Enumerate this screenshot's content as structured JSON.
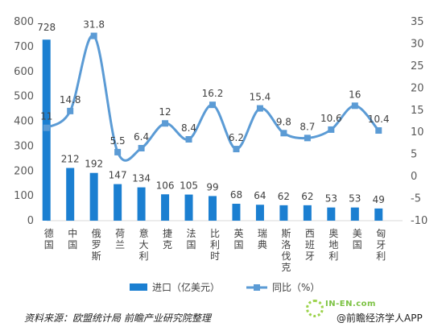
{
  "chart_data": {
    "type": "bar+line",
    "categories": [
      "德国",
      "中国",
      "俄罗斯",
      "荷兰",
      "意大利",
      "捷克",
      "法国",
      "比利时",
      "英国",
      "瑞典",
      "斯洛伐克",
      "西班牙",
      "奥地利",
      "美国",
      "匈牙利"
    ],
    "series": [
      {
        "name": "进口（亿美元）",
        "type": "bar",
        "axis": "left",
        "color": "#1b7fd1",
        "values": [
          728,
          212,
          192,
          147,
          134,
          106,
          105,
          99,
          68,
          64,
          62,
          62,
          53,
          53,
          49
        ]
      },
      {
        "name": "同比（%）",
        "type": "line",
        "axis": "right",
        "color": "#5b9bd5",
        "values": [
          11,
          14.8,
          31.8,
          5.5,
          6.4,
          12,
          8.4,
          16.2,
          6.2,
          15.4,
          9.8,
          8.7,
          10.6,
          16,
          10.4
        ]
      }
    ],
    "y_left": {
      "min": 0,
      "max": 800,
      "ticks": [
        "0",
        "100",
        "200",
        "300",
        "400",
        "500",
        "600",
        "700",
        "800"
      ]
    },
    "y_right": {
      "min": -10,
      "max": 35,
      "ticks": [
        "-10",
        "-5",
        "0",
        "5",
        "10",
        "15",
        "20",
        "25",
        "30",
        "35"
      ]
    },
    "legend_position": "bottom"
  },
  "footer": {
    "source": "资料来源：欧盟统计局 前瞻产业研究院整理",
    "brand": "@前瞻经济学人APP",
    "watermark": "IN-EN.com"
  }
}
